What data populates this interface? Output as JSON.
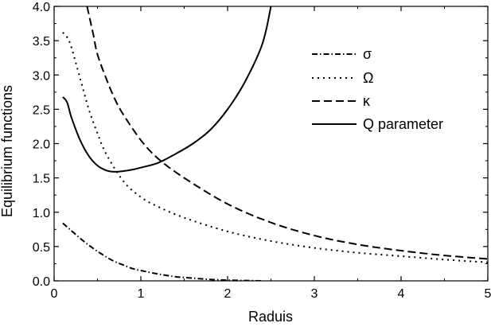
{
  "chart_data": {
    "type": "line",
    "xlabel": "Raduis",
    "ylabel": "Equilibrium functions",
    "xlim": [
      0,
      5
    ],
    "ylim": [
      0,
      4
    ],
    "xticks": [
      0,
      1,
      2,
      3,
      4,
      5
    ],
    "yticks": [
      0.0,
      0.5,
      1.0,
      1.5,
      2.0,
      2.5,
      3.0,
      3.5,
      4.0
    ],
    "xtick_labels": [
      "0",
      "1",
      "2",
      "3",
      "4",
      "5"
    ],
    "ytick_labels": [
      "0.0",
      "0.5",
      "1.0",
      "1.5",
      "2.0",
      "2.5",
      "3.0",
      "3.5",
      "4.0"
    ],
    "grid": false,
    "legend_position": "top-right",
    "series": [
      {
        "name": "σ",
        "style": "dash-dot",
        "color": "#000000",
        "x": [
          0.1,
          0.2,
          0.3,
          0.4,
          0.5,
          0.6,
          0.7,
          0.8,
          0.9,
          1.0,
          1.2,
          1.4,
          1.6,
          1.8,
          2.0,
          2.2,
          2.4
        ],
        "y": [
          0.84,
          0.73,
          0.62,
          0.52,
          0.43,
          0.35,
          0.28,
          0.23,
          0.18,
          0.15,
          0.1,
          0.06,
          0.04,
          0.02,
          0.01,
          0.005,
          0.0
        ]
      },
      {
        "name": "Ω",
        "style": "dotted",
        "color": "#000000",
        "x": [
          0.1,
          0.15,
          0.2,
          0.3,
          0.4,
          0.5,
          0.6,
          0.8,
          1.0,
          1.2,
          1.5,
          2.0,
          2.5,
          3.0,
          3.5,
          4.0,
          4.5,
          5.0
        ],
        "y": [
          3.62,
          3.55,
          3.4,
          2.95,
          2.5,
          2.15,
          1.85,
          1.45,
          1.22,
          1.08,
          0.92,
          0.72,
          0.58,
          0.48,
          0.41,
          0.36,
          0.31,
          0.27
        ]
      },
      {
        "name": "κ",
        "style": "dashed",
        "color": "#000000",
        "x": [
          0.38,
          0.45,
          0.5,
          0.6,
          0.7,
          0.8,
          1.0,
          1.2,
          1.5,
          2.0,
          2.5,
          3.0,
          3.5,
          4.0,
          4.5,
          5.0
        ],
        "y": [
          4.0,
          3.6,
          3.3,
          2.95,
          2.65,
          2.42,
          2.05,
          1.78,
          1.5,
          1.12,
          0.85,
          0.66,
          0.53,
          0.44,
          0.37,
          0.32
        ]
      },
      {
        "name": "Q parameter",
        "style": "solid",
        "color": "#000000",
        "x": [
          0.1,
          0.15,
          0.2,
          0.3,
          0.4,
          0.5,
          0.6,
          0.7,
          0.8,
          0.9,
          1.0,
          1.2,
          1.4,
          1.6,
          1.8,
          2.0,
          2.2,
          2.4,
          2.5
        ],
        "y": [
          2.68,
          2.6,
          2.38,
          2.05,
          1.82,
          1.68,
          1.61,
          1.59,
          1.6,
          1.62,
          1.65,
          1.72,
          1.85,
          2.0,
          2.2,
          2.5,
          2.9,
          3.45,
          4.0
        ]
      }
    ]
  }
}
